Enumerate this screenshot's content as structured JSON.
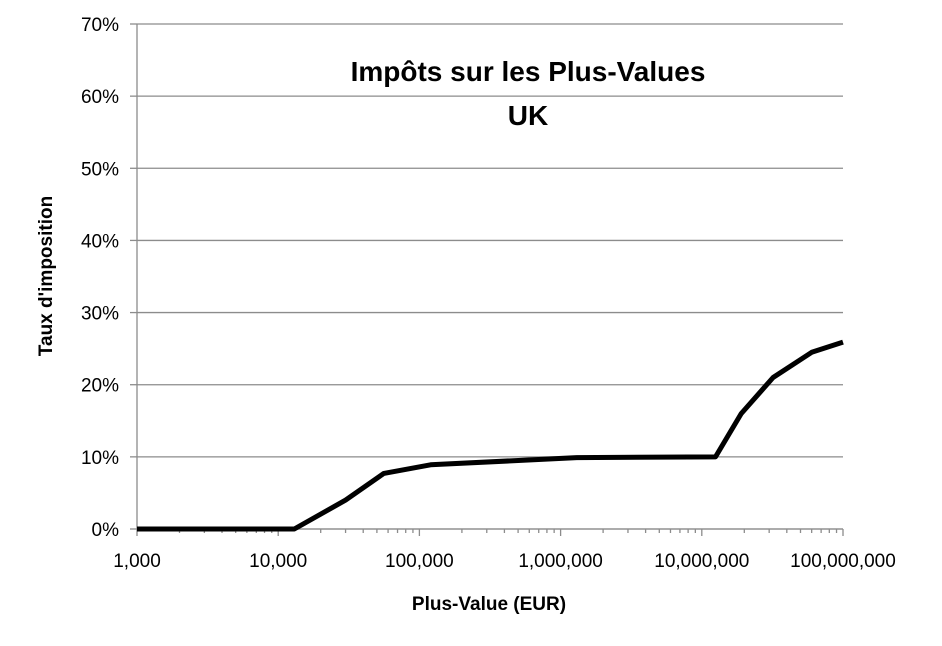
{
  "chart_data": {
    "type": "line",
    "title": [
      "Impôts sur les Plus-Values",
      "UK"
    ],
    "xlabel": "Plus-Value (EUR)",
    "ylabel": "Taux d'imposition",
    "x_scale": "log",
    "xlim": [
      1000,
      100000000
    ],
    "ylim": [
      0,
      0.7
    ],
    "grid": true,
    "legend": "none",
    "x_ticks": [
      {
        "value": 1000,
        "label": "1,000"
      },
      {
        "value": 10000,
        "label": "10,000"
      },
      {
        "value": 100000,
        "label": "100,000"
      },
      {
        "value": 1000000,
        "label": "1,000,000"
      },
      {
        "value": 10000000,
        "label": "10,000,000"
      },
      {
        "value": 100000000,
        "label": "100,000,000"
      }
    ],
    "y_ticks": [
      {
        "value": 0,
        "label": "0%"
      },
      {
        "value": 0.1,
        "label": "10%"
      },
      {
        "value": 0.2,
        "label": "20%"
      },
      {
        "value": 0.3,
        "label": "30%"
      },
      {
        "value": 0.4,
        "label": "40%"
      },
      {
        "value": 0.5,
        "label": "50%"
      },
      {
        "value": 0.6,
        "label": "60%"
      },
      {
        "value": 0.7,
        "label": "70%"
      }
    ],
    "series": [
      {
        "color": "#000000",
        "points": [
          {
            "x": 1000,
            "y": 0
          },
          {
            "x": 13000,
            "y": 0
          },
          {
            "x": 30000,
            "y": 0.04
          },
          {
            "x": 56000,
            "y": 0.077
          },
          {
            "x": 120000,
            "y": 0.089
          },
          {
            "x": 1300000,
            "y": 0.099
          },
          {
            "x": 12500000,
            "y": 0.1
          },
          {
            "x": 19000000,
            "y": 0.16
          },
          {
            "x": 32000000,
            "y": 0.21
          },
          {
            "x": 60000000,
            "y": 0.245
          },
          {
            "x": 100000000,
            "y": 0.259
          }
        ]
      }
    ]
  }
}
